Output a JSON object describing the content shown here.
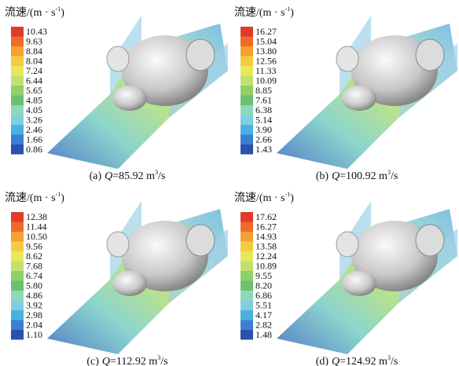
{
  "panels": [
    {
      "legend_title": "流速/(m · s",
      "legend_title_sup": "-1",
      "legend_title_end": ")",
      "legend_values": [
        "10.43",
        "9.63",
        "8.84",
        "8.04",
        "7.24",
        "6.44",
        "5.65",
        "4.85",
        "4.05",
        "3.26",
        "2.46",
        "1.66",
        "0.86"
      ],
      "caption": {
        "label": "(a)",
        "symbol": "Q",
        "value": "=85.92 m",
        "sup": "3",
        "unit": "/s"
      }
    },
    {
      "legend_title": "流速/(m · s",
      "legend_title_sup": "-1",
      "legend_title_end": ")",
      "legend_values": [
        "16.27",
        "15.04",
        "13.80",
        "12.56",
        "11.33",
        "10.09",
        "8.85",
        "7.61",
        "6.38",
        "5.14",
        "3.90",
        "2.66",
        "1.43"
      ],
      "caption": {
        "label": "(b)",
        "symbol": "Q",
        "value": "=100.92 m",
        "sup": "3",
        "unit": "/s"
      }
    },
    {
      "legend_title": "流速/(m · s",
      "legend_title_sup": "-1",
      "legend_title_end": ")",
      "legend_values": [
        "12.38",
        "11.44",
        "10.50",
        "9.56",
        "8.62",
        "7.68",
        "6.74",
        "5.80",
        "4.86",
        "3.92",
        "2.98",
        "2.04",
        "1.10"
      ],
      "caption": {
        "label": "(c)",
        "symbol": "Q",
        "value": "=112.92 m",
        "sup": "3",
        "unit": "/s"
      }
    },
    {
      "legend_title": "流速/(m · s",
      "legend_title_sup": "-1",
      "legend_title_end": ")",
      "legend_values": [
        "17.62",
        "16.27",
        "14.93",
        "13.58",
        "12.24",
        "10.89",
        "9.55",
        "8.20",
        "6.86",
        "5.51",
        "4.17",
        "2.82",
        "1.48"
      ],
      "caption": {
        "label": "(d)",
        "symbol": "Q",
        "value": "=124.92 m",
        "sup": "3",
        "unit": "/s"
      }
    }
  ]
}
